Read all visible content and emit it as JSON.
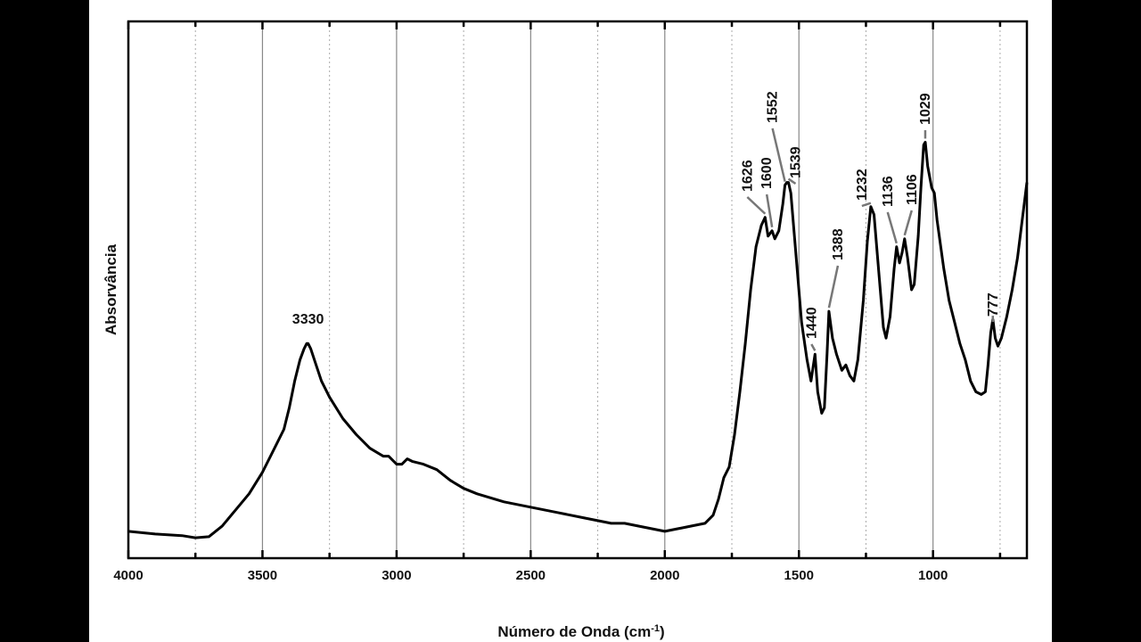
{
  "chart_data": {
    "type": "line",
    "title": "",
    "xlabel_main": "Número de Onda (cm",
    "xlabel_sup": "-1",
    "xlabel_close": ")",
    "ylabel": "Absorvância",
    "xlim": [
      4000,
      650
    ],
    "ylim": [
      0,
      1
    ],
    "x_reversed": true,
    "grid": {
      "major": "solid",
      "minor": "dotted",
      "axis": "x"
    },
    "line_color": "#000000",
    "x_ticks": [
      4000,
      3500,
      3000,
      2500,
      2000,
      1500,
      1000
    ],
    "x_minor_ticks": [
      3750,
      3250,
      2750,
      2250,
      1750,
      1250,
      750
    ],
    "series": [
      {
        "points": [
          [
            4000,
            0.05
          ],
          [
            3900,
            0.045
          ],
          [
            3800,
            0.042
          ],
          [
            3750,
            0.038
          ],
          [
            3700,
            0.04
          ],
          [
            3650,
            0.06
          ],
          [
            3600,
            0.09
          ],
          [
            3550,
            0.12
          ],
          [
            3500,
            0.16
          ],
          [
            3450,
            0.21
          ],
          [
            3420,
            0.24
          ],
          [
            3400,
            0.28
          ],
          [
            3380,
            0.33
          ],
          [
            3360,
            0.37
          ],
          [
            3345,
            0.39
          ],
          [
            3335,
            0.4
          ],
          [
            3330,
            0.4
          ],
          [
            3320,
            0.39
          ],
          [
            3300,
            0.36
          ],
          [
            3280,
            0.33
          ],
          [
            3250,
            0.3
          ],
          [
            3200,
            0.26
          ],
          [
            3150,
            0.23
          ],
          [
            3100,
            0.205
          ],
          [
            3050,
            0.19
          ],
          [
            3030,
            0.19
          ],
          [
            3000,
            0.175
          ],
          [
            2980,
            0.175
          ],
          [
            2960,
            0.185
          ],
          [
            2940,
            0.18
          ],
          [
            2900,
            0.175
          ],
          [
            2850,
            0.165
          ],
          [
            2800,
            0.145
          ],
          [
            2750,
            0.13
          ],
          [
            2700,
            0.12
          ],
          [
            2600,
            0.105
          ],
          [
            2500,
            0.095
          ],
          [
            2400,
            0.085
          ],
          [
            2300,
            0.075
          ],
          [
            2200,
            0.065
          ],
          [
            2150,
            0.065
          ],
          [
            2100,
            0.06
          ],
          [
            2000,
            0.05
          ],
          [
            1950,
            0.055
          ],
          [
            1900,
            0.06
          ],
          [
            1850,
            0.065
          ],
          [
            1820,
            0.08
          ],
          [
            1800,
            0.11
          ],
          [
            1780,
            0.15
          ],
          [
            1760,
            0.17
          ],
          [
            1740,
            0.23
          ],
          [
            1720,
            0.31
          ],
          [
            1700,
            0.4
          ],
          [
            1680,
            0.5
          ],
          [
            1660,
            0.58
          ],
          [
            1640,
            0.62
          ],
          [
            1626,
            0.635
          ],
          [
            1615,
            0.6
          ],
          [
            1600,
            0.61
          ],
          [
            1590,
            0.595
          ],
          [
            1575,
            0.61
          ],
          [
            1560,
            0.66
          ],
          [
            1552,
            0.695
          ],
          [
            1545,
            0.7
          ],
          [
            1539,
            0.7
          ],
          [
            1530,
            0.68
          ],
          [
            1510,
            0.56
          ],
          [
            1490,
            0.44
          ],
          [
            1470,
            0.37
          ],
          [
            1455,
            0.33
          ],
          [
            1440,
            0.38
          ],
          [
            1430,
            0.31
          ],
          [
            1415,
            0.27
          ],
          [
            1405,
            0.28
          ],
          [
            1395,
            0.38
          ],
          [
            1388,
            0.46
          ],
          [
            1375,
            0.41
          ],
          [
            1360,
            0.38
          ],
          [
            1340,
            0.35
          ],
          [
            1325,
            0.36
          ],
          [
            1310,
            0.34
          ],
          [
            1295,
            0.33
          ],
          [
            1280,
            0.37
          ],
          [
            1260,
            0.48
          ],
          [
            1245,
            0.59
          ],
          [
            1232,
            0.655
          ],
          [
            1220,
            0.64
          ],
          [
            1200,
            0.52
          ],
          [
            1185,
            0.43
          ],
          [
            1175,
            0.41
          ],
          [
            1160,
            0.45
          ],
          [
            1145,
            0.54
          ],
          [
            1136,
            0.58
          ],
          [
            1125,
            0.55
          ],
          [
            1115,
            0.57
          ],
          [
            1106,
            0.595
          ],
          [
            1095,
            0.56
          ],
          [
            1080,
            0.5
          ],
          [
            1070,
            0.51
          ],
          [
            1055,
            0.6
          ],
          [
            1045,
            0.69
          ],
          [
            1035,
            0.77
          ],
          [
            1029,
            0.775
          ],
          [
            1020,
            0.73
          ],
          [
            1005,
            0.69
          ],
          [
            995,
            0.68
          ],
          [
            985,
            0.63
          ],
          [
            960,
            0.54
          ],
          [
            940,
            0.48
          ],
          [
            920,
            0.44
          ],
          [
            900,
            0.4
          ],
          [
            880,
            0.37
          ],
          [
            860,
            0.33
          ],
          [
            840,
            0.31
          ],
          [
            820,
            0.305
          ],
          [
            805,
            0.31
          ],
          [
            795,
            0.36
          ],
          [
            785,
            0.42
          ],
          [
            777,
            0.445
          ],
          [
            768,
            0.41
          ],
          [
            758,
            0.395
          ],
          [
            745,
            0.41
          ],
          [
            725,
            0.45
          ],
          [
            705,
            0.5
          ],
          [
            685,
            0.56
          ],
          [
            665,
            0.64
          ],
          [
            650,
            0.7
          ]
        ]
      }
    ],
    "annotations": [
      {
        "label": "3330",
        "x": 3330,
        "rotated": false
      },
      {
        "label": "1626",
        "x": 1626,
        "rotated": true
      },
      {
        "label": "1600",
        "x": 1600,
        "rotated": true
      },
      {
        "label": "1552",
        "x": 1552,
        "rotated": true
      },
      {
        "label": "1539",
        "x": 1539,
        "rotated": true
      },
      {
        "label": "1440",
        "x": 1440,
        "rotated": true
      },
      {
        "label": "1388",
        "x": 1388,
        "rotated": true
      },
      {
        "label": "1232",
        "x": 1232,
        "rotated": true
      },
      {
        "label": "1136",
        "x": 1136,
        "rotated": true
      },
      {
        "label": "1106",
        "x": 1106,
        "rotated": true
      },
      {
        "label": "1029",
        "x": 1029,
        "rotated": true
      },
      {
        "label": "777",
        "x": 777,
        "rotated": true
      }
    ]
  }
}
